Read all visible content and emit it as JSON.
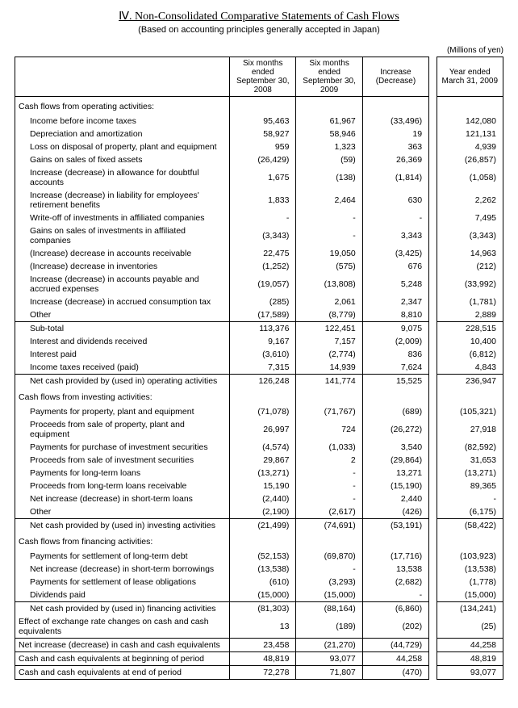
{
  "title": "Ⅳ. Non-Consolidated Comparative Statements of Cash Flows",
  "subtitle": "(Based on accounting principles generally accepted in Japan)",
  "unit": "(Millions of yen)",
  "headers": {
    "c1": "Six months ended September 30, 2008",
    "c2": "Six months ended September 30, 2009",
    "c3": "Increase (Decrease)",
    "c4": "Year ended March 31, 2009"
  },
  "sections": [
    {
      "type": "section",
      "label": "Cash flows from operating activities:"
    },
    {
      "type": "item",
      "label": "Income before income taxes",
      "v": [
        "95,463",
        "61,967",
        "(33,496)",
        "142,080"
      ]
    },
    {
      "type": "item",
      "label": "Depreciation and amortization",
      "v": [
        "58,927",
        "58,946",
        "19",
        "121,131"
      ]
    },
    {
      "type": "item",
      "label": "Loss on disposal of property, plant and equipment",
      "v": [
        "959",
        "1,323",
        "363",
        "4,939"
      ]
    },
    {
      "type": "item",
      "label": "Gains on sales of fixed assets",
      "v": [
        "(26,429)",
        "(59)",
        "26,369",
        "(26,857)"
      ]
    },
    {
      "type": "item",
      "label": "Increase (decrease) in allowance for doubtful accounts",
      "v": [
        "1,675",
        "(138)",
        "(1,814)",
        "(1,058)"
      ]
    },
    {
      "type": "item",
      "label": "Increase (decrease) in liability for employees' retirement benefits",
      "v": [
        "1,833",
        "2,464",
        "630",
        "2,262"
      ]
    },
    {
      "type": "item",
      "label": "Write-off of investments in affiliated companies",
      "v": [
        "-",
        "-",
        "-",
        "7,495"
      ]
    },
    {
      "type": "item",
      "label": "Gains on sales of investments in affiliated companies",
      "v": [
        "(3,343)",
        "-",
        "3,343",
        "(3,343)"
      ]
    },
    {
      "type": "item",
      "label": "(Increase) decrease in accounts receivable",
      "v": [
        "22,475",
        "19,050",
        "(3,425)",
        "14,963"
      ]
    },
    {
      "type": "item",
      "label": "(Increase) decrease in inventories",
      "v": [
        "(1,252)",
        "(575)",
        "676",
        "(212)"
      ]
    },
    {
      "type": "item",
      "label": "Increase (decrease) in accounts payable and accrued expenses",
      "v": [
        "(19,057)",
        "(13,808)",
        "5,248",
        "(33,992)"
      ]
    },
    {
      "type": "item",
      "label": "Increase (decrease) in accrued consumption tax",
      "v": [
        "(285)",
        "2,061",
        "2,347",
        "(1,781)"
      ]
    },
    {
      "type": "item",
      "label": "Other",
      "v": [
        "(17,589)",
        "(8,779)",
        "8,810",
        "2,889"
      ]
    },
    {
      "type": "subtotal",
      "label": "Sub-total",
      "v": [
        "113,376",
        "122,451",
        "9,075",
        "228,515"
      ]
    },
    {
      "type": "item",
      "label": "Interest and dividends received",
      "v": [
        "9,167",
        "7,157",
        "(2,009)",
        "10,400"
      ]
    },
    {
      "type": "item",
      "label": "Interest paid",
      "v": [
        "(3,610)",
        "(2,774)",
        "836",
        "(6,812)"
      ]
    },
    {
      "type": "item",
      "label": "Income taxes received (paid)",
      "v": [
        "7,315",
        "14,939",
        "7,624",
        "4,843"
      ]
    },
    {
      "type": "nettotal",
      "label": "Net cash provided by (used in) operating activities",
      "v": [
        "126,248",
        "141,774",
        "15,525",
        "236,947"
      ]
    },
    {
      "type": "section",
      "label": "Cash flows from investing activities:"
    },
    {
      "type": "item",
      "label": "Payments for property, plant and equipment",
      "v": [
        "(71,078)",
        "(71,767)",
        "(689)",
        "(105,321)"
      ]
    },
    {
      "type": "item",
      "label": "Proceeds from sale of property, plant and equipment",
      "v": [
        "26,997",
        "724",
        "(26,272)",
        "27,918"
      ]
    },
    {
      "type": "item",
      "label": "Payments for purchase of investment securities",
      "v": [
        "(4,574)",
        "(1,033)",
        "3,540",
        "(82,592)"
      ]
    },
    {
      "type": "item",
      "label": "Proceeds from sale of investment securities",
      "v": [
        "29,867",
        "2",
        "(29,864)",
        "31,653"
      ]
    },
    {
      "type": "item",
      "label": "Payments for long-term loans",
      "v": [
        "(13,271)",
        "-",
        "13,271",
        "(13,271)"
      ]
    },
    {
      "type": "item",
      "label": "Proceeds from long-term loans receivable",
      "v": [
        "15,190",
        "-",
        "(15,190)",
        "89,365"
      ]
    },
    {
      "type": "item",
      "label": "Net increase (decrease) in short-term loans",
      "v": [
        "(2,440)",
        "-",
        "2,440",
        "-"
      ]
    },
    {
      "type": "item",
      "label": "Other",
      "v": [
        "(2,190)",
        "(2,617)",
        "(426)",
        "(6,175)"
      ]
    },
    {
      "type": "nettotal",
      "label": "Net cash provided by (used in) investing activities",
      "v": [
        "(21,499)",
        "(74,691)",
        "(53,191)",
        "(58,422)"
      ]
    },
    {
      "type": "section",
      "label": "Cash flows from financing activities:"
    },
    {
      "type": "item",
      "label": "Payments for settlement of long-term debt",
      "v": [
        "(52,153)",
        "(69,870)",
        "(17,716)",
        "(103,923)"
      ]
    },
    {
      "type": "item",
      "label": "Net increase (decrease) in short-term borrowings",
      "v": [
        "(13,538)",
        "-",
        "13,538",
        "(13,538)"
      ]
    },
    {
      "type": "item",
      "label": "Payments for settlement of lease obligations",
      "v": [
        "(610)",
        "(3,293)",
        "(2,682)",
        "(1,778)"
      ]
    },
    {
      "type": "item",
      "label": "Dividends paid",
      "v": [
        "(15,000)",
        "(15,000)",
        "-",
        "(15,000)"
      ]
    },
    {
      "type": "nettotal",
      "label": "Net cash provided by (used in) financing activities",
      "v": [
        "(81,303)",
        "(88,164)",
        "(6,860)",
        "(134,241)"
      ]
    },
    {
      "type": "item2",
      "label": "Effect of exchange rate changes on cash and cash equivalents",
      "v": [
        "13",
        "(189)",
        "(202)",
        "(25)"
      ]
    },
    {
      "type": "item2top",
      "label": "Net increase (decrease) in cash and cash equivalents",
      "v": [
        "23,458",
        "(21,270)",
        "(44,729)",
        "44,258"
      ]
    },
    {
      "type": "item2top",
      "label": "Cash and cash equivalents at beginning of period",
      "v": [
        "48,819",
        "93,077",
        "44,258",
        "48,819"
      ]
    },
    {
      "type": "item2topbot",
      "label": "Cash and cash equivalents at end of period",
      "v": [
        "72,278",
        "71,807",
        "(470)",
        "93,077"
      ]
    }
  ]
}
